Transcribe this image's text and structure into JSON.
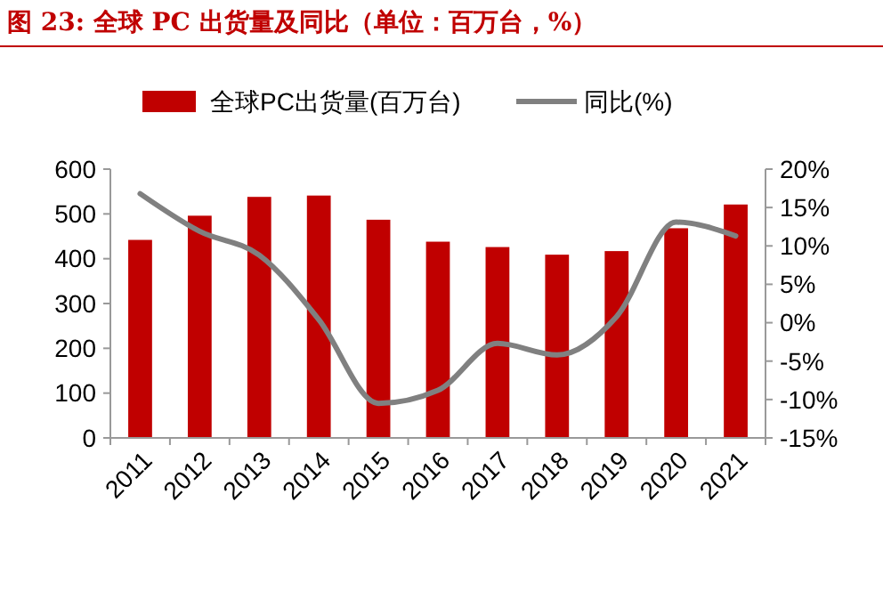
{
  "chart_data": {
    "type": "bar",
    "title": "图 23:  全球 PC 出货量及同比（单位：百万台，%）",
    "categories": [
      "2011",
      "2012",
      "2013",
      "2014",
      "2015",
      "2016",
      "2017",
      "2018",
      "2019",
      "2020",
      "2021"
    ],
    "series": [
      {
        "name": "全球PC出货量(百万台)",
        "color": "#c00000",
        "values": [
          442,
          496,
          538,
          541,
          487,
          438,
          426,
          409,
          417,
          468,
          521
        ]
      },
      {
        "name": "同比(%)",
        "type": "line",
        "axis": "y2",
        "color": "#808080",
        "values": [
          16.8,
          11.9,
          8.8,
          0.4,
          -10.5,
          -8.8,
          -2.7,
          -4.2,
          0.8,
          13.1,
          11.3
        ]
      }
    ],
    "ylim": [
      0,
      600
    ],
    "yticks": [
      0,
      100,
      200,
      300,
      400,
      500,
      600
    ],
    "y2lim": [
      -15,
      20
    ],
    "y2ticks": [
      {
        "value": -15,
        "label": "-15%"
      },
      {
        "value": -10,
        "label": "-10%"
      },
      {
        "value": -5,
        "label": "-5%"
      },
      {
        "value": 0,
        "label": "0%"
      },
      {
        "value": 5,
        "label": "5%"
      },
      {
        "value": 10,
        "label": "10%"
      },
      {
        "value": 15,
        "label": "15%"
      },
      {
        "value": 20,
        "label": "20%"
      }
    ],
    "legend": "top",
    "grid": false
  }
}
